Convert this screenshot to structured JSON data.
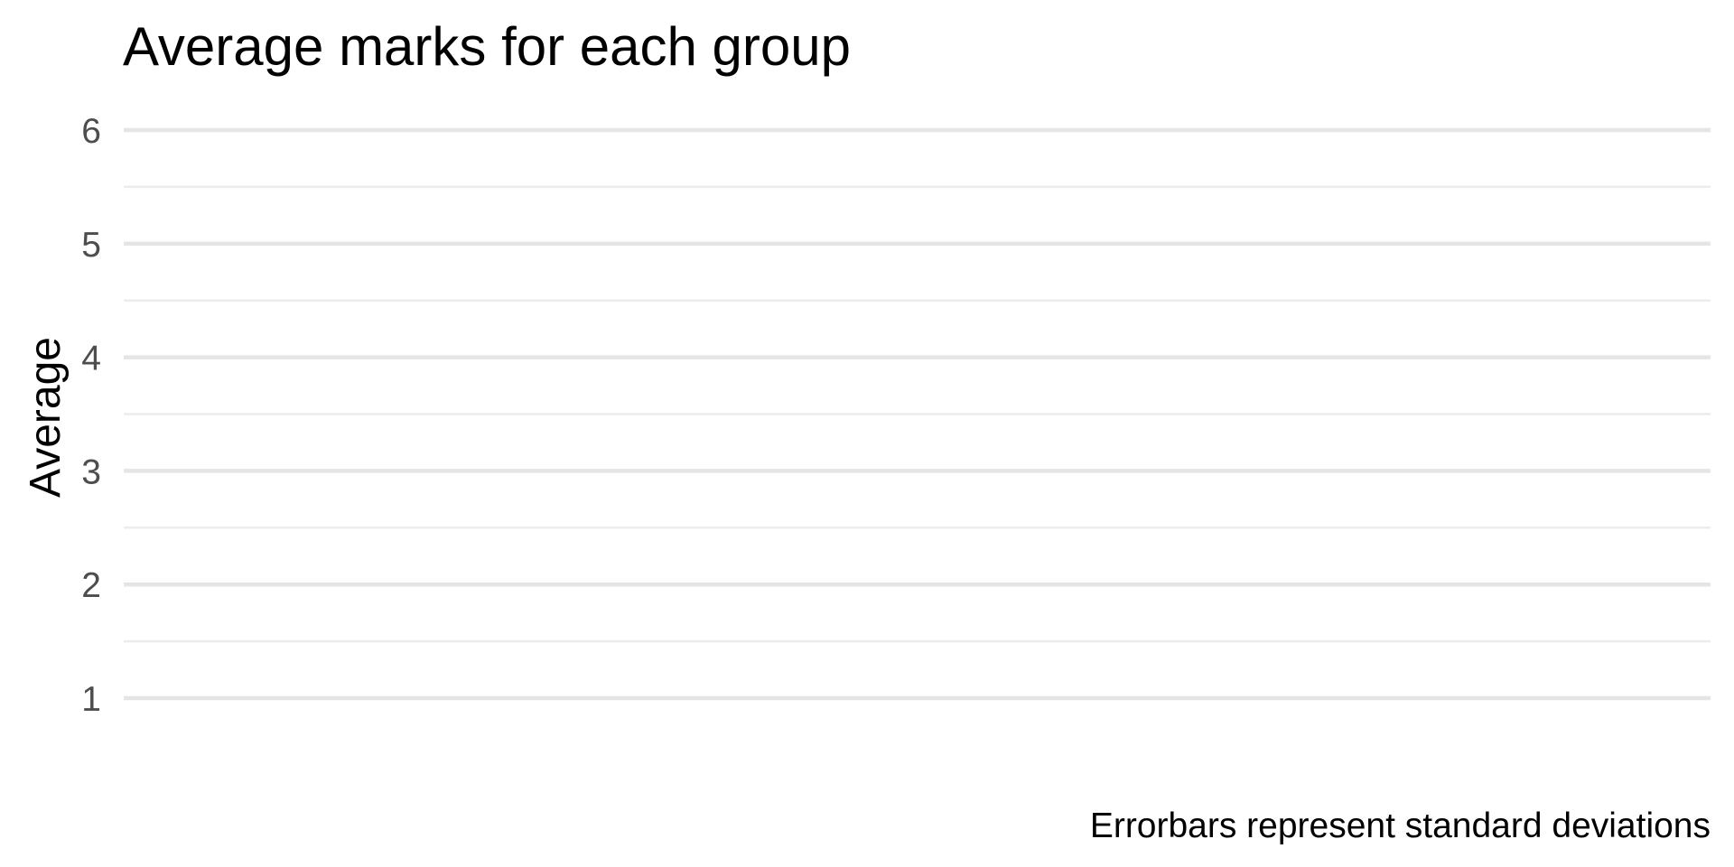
{
  "chart_data": {
    "type": "bar",
    "title": "Average marks for each group",
    "xlabel": "",
    "ylabel": "Average",
    "caption": "Errorbars represent standard deviations",
    "categories": [],
    "values": [],
    "ylim": [
      1,
      6
    ],
    "y_ticks": [
      1,
      2,
      3,
      4,
      5,
      6
    ],
    "y_tick_labels": [
      "1",
      "2",
      "3",
      "4",
      "5",
      "6"
    ],
    "y_minor_ticks": [
      1.5,
      2.5,
      3.5,
      4.5,
      5.5
    ],
    "grid": true,
    "legend": "none"
  }
}
